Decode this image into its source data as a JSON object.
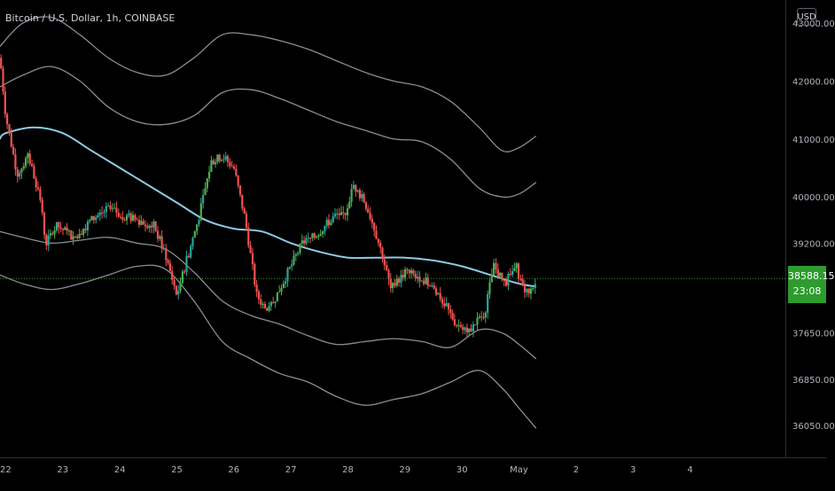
{
  "header": {
    "symbol": "Bitcoin / U.S. Dollar, 1h, COINBASE",
    "currency": "USD"
  },
  "last_price": {
    "value": "38588.15",
    "countdown": "23:08",
    "color": "#2e9b2e"
  },
  "colors": {
    "up": "#26a69a",
    "up_alt": "#4caf50",
    "down": "#ef5350",
    "ma": "#8ecae6",
    "band": "#8a8d98",
    "price_line": "#2e9b2e",
    "axis_text": "#b2b5be"
  },
  "chart_data": {
    "type": "line",
    "title": "Bitcoin / U.S. Dollar, 1h, COINBASE",
    "xlabel": "",
    "ylabel": "",
    "x_ticks": [
      "22",
      "23",
      "24",
      "25",
      "26",
      "27",
      "28",
      "29",
      "30",
      "May",
      "2",
      "3",
      "4"
    ],
    "y_ticks": [
      "43000.00",
      "42000.00",
      "41000.00",
      "40000.00",
      "39200.00",
      "37650.00",
      "36850.00",
      "36050.00"
    ],
    "xlim": [
      21.9,
      35.67
    ],
    "ylim": [
      35500,
      43400
    ],
    "last_price": 38588.15,
    "grid": false,
    "legend": "none",
    "price_path": [
      [
        21.9,
        42400
      ],
      [
        22.0,
        41400
      ],
      [
        22.2,
        40400
      ],
      [
        22.4,
        40700
      ],
      [
        22.6,
        40000
      ],
      [
        22.7,
        39200
      ],
      [
        22.9,
        39500
      ],
      [
        23.2,
        39300
      ],
      [
        23.5,
        39600
      ],
      [
        23.8,
        39800
      ],
      [
        24.0,
        39700
      ],
      [
        24.3,
        39600
      ],
      [
        24.6,
        39500
      ],
      [
        24.8,
        39000
      ],
      [
        25.0,
        38300
      ],
      [
        25.2,
        39000
      ],
      [
        25.4,
        39700
      ],
      [
        25.6,
        40600
      ],
      [
        25.8,
        40700
      ],
      [
        26.0,
        40500
      ],
      [
        26.2,
        39600
      ],
      [
        26.4,
        38300
      ],
      [
        26.6,
        38000
      ],
      [
        26.8,
        38400
      ],
      [
        27.0,
        38800
      ],
      [
        27.2,
        39200
      ],
      [
        27.4,
        39300
      ],
      [
        27.6,
        39500
      ],
      [
        27.8,
        39700
      ],
      [
        27.95,
        39700
      ],
      [
        28.1,
        40200
      ],
      [
        28.3,
        39900
      ],
      [
        28.45,
        39500
      ],
      [
        28.6,
        39000
      ],
      [
        28.75,
        38400
      ],
      [
        29.0,
        38700
      ],
      [
        29.3,
        38600
      ],
      [
        29.6,
        38300
      ],
      [
        29.9,
        37800
      ],
      [
        30.15,
        37700
      ],
      [
        30.4,
        38000
      ],
      [
        30.55,
        38800
      ],
      [
        30.75,
        38500
      ],
      [
        30.95,
        38800
      ],
      [
        31.1,
        38300
      ],
      [
        31.3,
        38500
      ]
    ],
    "series": [
      {
        "values": [
          [
            21.9,
            41000
          ],
          [
            22.0,
            41100
          ],
          [
            22.5,
            41200
          ],
          [
            23.0,
            41100
          ],
          [
            23.5,
            40800
          ],
          [
            24.0,
            40500
          ],
          [
            24.5,
            40200
          ],
          [
            25.0,
            39900
          ],
          [
            25.5,
            39600
          ],
          [
            26.0,
            39450
          ],
          [
            26.5,
            39400
          ],
          [
            27.0,
            39200
          ],
          [
            27.5,
            39050
          ],
          [
            28.0,
            38950
          ],
          [
            28.5,
            38950
          ],
          [
            29.0,
            38950
          ],
          [
            29.5,
            38900
          ],
          [
            30.0,
            38800
          ],
          [
            30.5,
            38650
          ],
          [
            31.0,
            38500
          ],
          [
            31.3,
            38450
          ]
        ]
      },
      {
        "values": [
          [
            21.9,
            42600
          ],
          [
            22.3,
            43000
          ],
          [
            22.8,
            43100
          ],
          [
            23.3,
            42800
          ],
          [
            23.8,
            42400
          ],
          [
            24.3,
            42150
          ],
          [
            24.8,
            42100
          ],
          [
            25.3,
            42400
          ],
          [
            25.8,
            42800
          ],
          [
            26.3,
            42800
          ],
          [
            26.8,
            42700
          ],
          [
            27.3,
            42550
          ],
          [
            27.8,
            42350
          ],
          [
            28.3,
            42150
          ],
          [
            28.8,
            42000
          ],
          [
            29.3,
            41900
          ],
          [
            29.8,
            41650
          ],
          [
            30.3,
            41200
          ],
          [
            30.7,
            40800
          ],
          [
            31.0,
            40850
          ],
          [
            31.3,
            41050
          ]
        ]
      },
      {
        "values": [
          [
            21.9,
            41900
          ],
          [
            22.3,
            42100
          ],
          [
            22.8,
            42250
          ],
          [
            23.3,
            42000
          ],
          [
            23.8,
            41550
          ],
          [
            24.3,
            41300
          ],
          [
            24.8,
            41250
          ],
          [
            25.3,
            41400
          ],
          [
            25.8,
            41800
          ],
          [
            26.3,
            41850
          ],
          [
            26.8,
            41700
          ],
          [
            27.3,
            41500
          ],
          [
            27.8,
            41300
          ],
          [
            28.3,
            41150
          ],
          [
            28.8,
            41000
          ],
          [
            29.3,
            40950
          ],
          [
            29.8,
            40650
          ],
          [
            30.3,
            40150
          ],
          [
            30.7,
            40000
          ],
          [
            31.0,
            40050
          ],
          [
            31.3,
            40250
          ]
        ]
      },
      {
        "values": [
          [
            21.9,
            39400
          ],
          [
            22.3,
            39300
          ],
          [
            22.8,
            39200
          ],
          [
            23.3,
            39250
          ],
          [
            23.8,
            39300
          ],
          [
            24.3,
            39200
          ],
          [
            24.8,
            39100
          ],
          [
            25.3,
            38700
          ],
          [
            25.8,
            38200
          ],
          [
            26.3,
            37950
          ],
          [
            26.8,
            37800
          ],
          [
            27.3,
            37600
          ],
          [
            27.8,
            37450
          ],
          [
            28.3,
            37500
          ],
          [
            28.8,
            37550
          ],
          [
            29.3,
            37500
          ],
          [
            29.8,
            37400
          ],
          [
            30.3,
            37700
          ],
          [
            30.7,
            37650
          ],
          [
            31.0,
            37450
          ],
          [
            31.3,
            37200
          ]
        ]
      },
      {
        "values": [
          [
            21.9,
            38650
          ],
          [
            22.3,
            38500
          ],
          [
            22.8,
            38400
          ],
          [
            23.3,
            38500
          ],
          [
            23.8,
            38650
          ],
          [
            24.3,
            38800
          ],
          [
            24.8,
            38750
          ],
          [
            25.3,
            38200
          ],
          [
            25.8,
            37500
          ],
          [
            26.3,
            37200
          ],
          [
            26.8,
            36950
          ],
          [
            27.3,
            36800
          ],
          [
            27.8,
            36550
          ],
          [
            28.3,
            36400
          ],
          [
            28.8,
            36500
          ],
          [
            29.3,
            36600
          ],
          [
            29.8,
            36800
          ],
          [
            30.3,
            37000
          ],
          [
            30.7,
            36700
          ],
          [
            31.0,
            36350
          ],
          [
            31.3,
            36000
          ]
        ]
      }
    ]
  }
}
